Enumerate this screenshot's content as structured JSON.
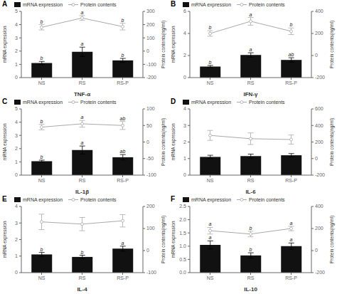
{
  "chart_data": [
    {
      "type": "bar",
      "title": "A",
      "xlabel": "TNF-α",
      "ylabel": "mRNA expression",
      "y2label": "Protein contents(ng/ml)",
      "categories": [
        "NS",
        "RS",
        "RS-P"
      ],
      "series": [
        {
          "name": "mRNA expression",
          "type": "bar",
          "color": "#111111",
          "values": [
            1.1,
            1.95,
            1.3
          ],
          "errors": [
            0.12,
            0.35,
            0.15
          ],
          "annotations": [
            "b",
            "a",
            "b"
          ]
        },
        {
          "name": "Protein contents",
          "type": "line",
          "axis": "y2",
          "color": "#aaaaaa",
          "marker": "circle",
          "values": [
            180,
            250,
            185
          ],
          "errors": [
            20,
            18,
            25
          ],
          "annotations": [
            "b",
            "a",
            "b"
          ]
        }
      ],
      "ylim": [
        0,
        5
      ],
      "yticks": [
        0,
        1,
        2,
        3,
        4,
        5
      ],
      "y2lim": [
        -200,
        300
      ],
      "y2ticks": [
        -200,
        -100,
        0,
        100,
        200,
        300
      ],
      "grid": false,
      "legend": "upper left"
    },
    {
      "type": "bar",
      "title": "B",
      "xlabel": "IFN-γ",
      "ylabel": "mRNA expression",
      "y2label": "Protein contents(ng/ml)",
      "categories": [
        "NS",
        "RS",
        "RS-P"
      ],
      "series": [
        {
          "name": "mRNA expression",
          "type": "bar",
          "color": "#111111",
          "values": [
            1.0,
            2.05,
            1.6
          ],
          "errors": [
            0.1,
            0.2,
            0.2
          ],
          "annotations": [
            "b",
            "a",
            "ab"
          ]
        },
        {
          "name": "Protein contents",
          "type": "line",
          "axis": "y2",
          "color": "#aaaaaa",
          "marker": "circle",
          "values": [
            200,
            310,
            220
          ],
          "errors": [
            25,
            35,
            30
          ],
          "annotations": [
            "b",
            "a",
            "b"
          ]
        }
      ],
      "ylim": [
        0,
        6
      ],
      "yticks": [
        0,
        2,
        4,
        6
      ],
      "y2lim": [
        -200,
        400
      ],
      "y2ticks": [
        -200,
        0,
        200,
        400
      ],
      "grid": false,
      "legend": "upper left"
    },
    {
      "type": "bar",
      "title": "C",
      "xlabel": "IL-1β",
      "ylabel": "mRNA expression",
      "y2label": "Protein contents(ng/ml)",
      "categories": [
        "NS",
        "RS",
        "RS-P"
      ],
      "series": [
        {
          "name": "mRNA expression",
          "type": "bar",
          "color": "#111111",
          "values": [
            1.05,
            1.9,
            1.35
          ],
          "errors": [
            0.08,
            0.3,
            0.2
          ],
          "annotations": [
            "b",
            "a",
            "ab"
          ]
        },
        {
          "name": "Protein contents",
          "type": "line",
          "axis": "y2",
          "color": "#aaaaaa",
          "marker": "circle",
          "values": [
            45,
            55,
            50
          ],
          "errors": [
            8,
            10,
            12
          ],
          "annotations": [
            "b",
            "a",
            "ab"
          ]
        }
      ],
      "ylim": [
        0,
        5
      ],
      "yticks": [
        0,
        1,
        2,
        3,
        4,
        5
      ],
      "y2lim": [
        -100,
        100
      ],
      "y2ticks": [
        -100,
        -50,
        0,
        50,
        100
      ],
      "grid": false,
      "legend": "upper left"
    },
    {
      "type": "bar",
      "title": "D",
      "xlabel": "IL-6",
      "ylabel": "mRNA expression",
      "y2label": "Protein contents(ng/ml)",
      "categories": [
        "NS",
        "RS",
        "RS-P"
      ],
      "series": [
        {
          "name": "mRNA expression",
          "type": "bar",
          "color": "#111111",
          "values": [
            1.1,
            1.15,
            1.2
          ],
          "errors": [
            0.1,
            0.12,
            0.1
          ]
        },
        {
          "name": "Protein contents",
          "type": "line",
          "axis": "y2",
          "color": "#aaaaaa",
          "marker": "circle",
          "values": [
            280,
            240,
            230
          ],
          "errors": [
            60,
            70,
            55
          ]
        }
      ],
      "ylim": [
        0,
        4
      ],
      "yticks": [
        0,
        1,
        2,
        3,
        4
      ],
      "y2lim": [
        -200,
        600
      ],
      "y2ticks": [
        -200,
        0,
        200,
        400,
        600
      ],
      "grid": false,
      "legend": "upper left"
    },
    {
      "type": "bar",
      "title": "E",
      "xlabel": "IL-4",
      "ylabel": "mRNA expression",
      "y2label": "Protein contents(ng/ml)",
      "categories": [
        "NS",
        "RS",
        "RS-P"
      ],
      "series": [
        {
          "name": "mRNA expression",
          "type": "bar",
          "color": "#111111",
          "values": [
            1.1,
            0.95,
            1.45
          ],
          "errors": [
            0.12,
            0.1,
            0.15
          ],
          "annotations": [
            "b",
            "b",
            "a"
          ]
        },
        {
          "name": "Protein contents",
          "type": "line",
          "axis": "y2",
          "color": "#aaaaaa",
          "marker": "circle",
          "values": [
            130,
            120,
            135
          ],
          "errors": [
            35,
            30,
            28
          ]
        }
      ],
      "ylim": [
        0,
        4
      ],
      "yticks": [
        0,
        1,
        2,
        3,
        4
      ],
      "y2lim": [
        -100,
        200
      ],
      "y2ticks": [
        -100,
        0,
        100,
        200
      ],
      "grid": false,
      "legend": "upper left"
    },
    {
      "type": "bar",
      "title": "F",
      "xlabel": "IL-10",
      "ylabel": "mRNA expression",
      "y2label": "Protein contents(ng/ml)",
      "categories": [
        "NS",
        "RS",
        "RS-P"
      ],
      "series": [
        {
          "name": "mRNA expression",
          "type": "bar",
          "color": "#111111",
          "values": [
            1.05,
            0.65,
            1.0
          ],
          "errors": [
            0.15,
            0.1,
            0.12
          ],
          "annotations": [
            "a",
            "b",
            "a"
          ]
        },
        {
          "name": "Protein contents",
          "type": "line",
          "axis": "y2",
          "color": "#aaaaaa",
          "marker": "circle",
          "values": [
            180,
            150,
            200
          ],
          "errors": [
            30,
            25,
            20
          ],
          "annotations": [
            "a",
            "b",
            "a"
          ]
        }
      ],
      "ylim": [
        0.0,
        2.5
      ],
      "yticks": [
        {
          "value": 0,
          "label": "0.0"
        },
        0.5,
        {
          "value": 1,
          "label": "1.0"
        },
        1.5,
        {
          "value": 2,
          "label": "2.0"
        },
        2.5
      ],
      "y2lim": [
        -200,
        400
      ],
      "y2ticks": [
        -200,
        0,
        200,
        400
      ],
      "grid": false,
      "legend": "upper left"
    }
  ]
}
